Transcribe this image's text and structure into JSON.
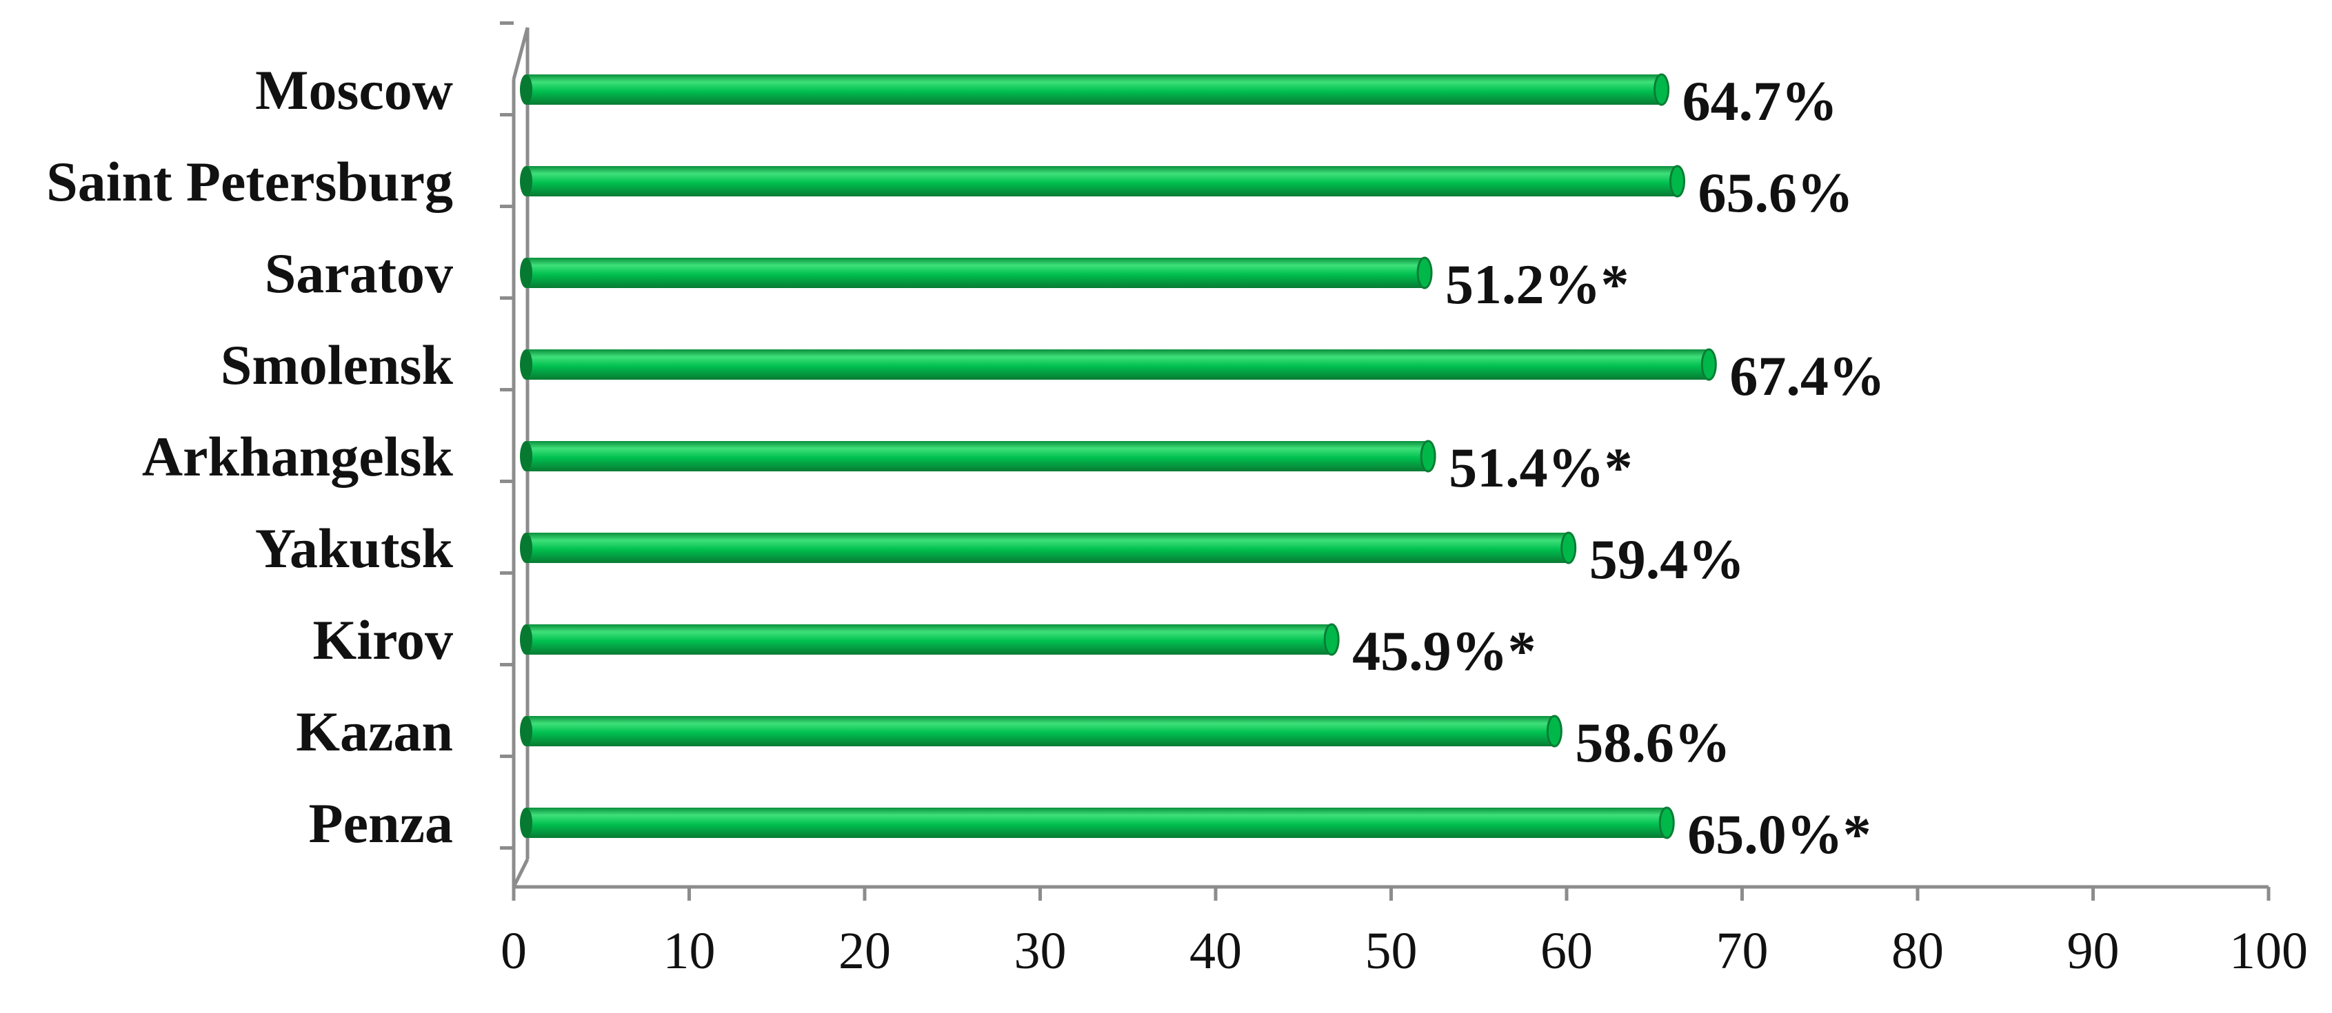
{
  "chart_data": {
    "type": "bar",
    "orientation": "horizontal",
    "categories": [
      "Moscow",
      "Saint Petersburg",
      "Saratov",
      "Smolensk",
      "Arkhangelsk",
      "Yakutsk",
      "Kirov",
      "Kazan",
      "Penza"
    ],
    "values": [
      64.7,
      65.6,
      51.2,
      67.4,
      51.4,
      59.4,
      45.9,
      58.6,
      65.0
    ],
    "data_labels": [
      "64.7%",
      "65.6%",
      "51.2%*",
      "67.4%",
      "51.4%*",
      "59.4%",
      "45.9%*",
      "58.6%",
      "65.0%*"
    ],
    "xlim": [
      0,
      100
    ],
    "xticks": [
      "0",
      "10",
      "20",
      "30",
      "40",
      "50",
      "60",
      "70",
      "80",
      "90",
      "100"
    ],
    "title": "",
    "xlabel": "",
    "ylabel": "",
    "grid": false,
    "legend": "none",
    "colors": {
      "bar_light": "#3fe07a",
      "bar_mid": "#00b84a",
      "bar_dark": "#0a7d35",
      "bar_cap": "#067a30",
      "axis": "#8c8c8c"
    }
  }
}
